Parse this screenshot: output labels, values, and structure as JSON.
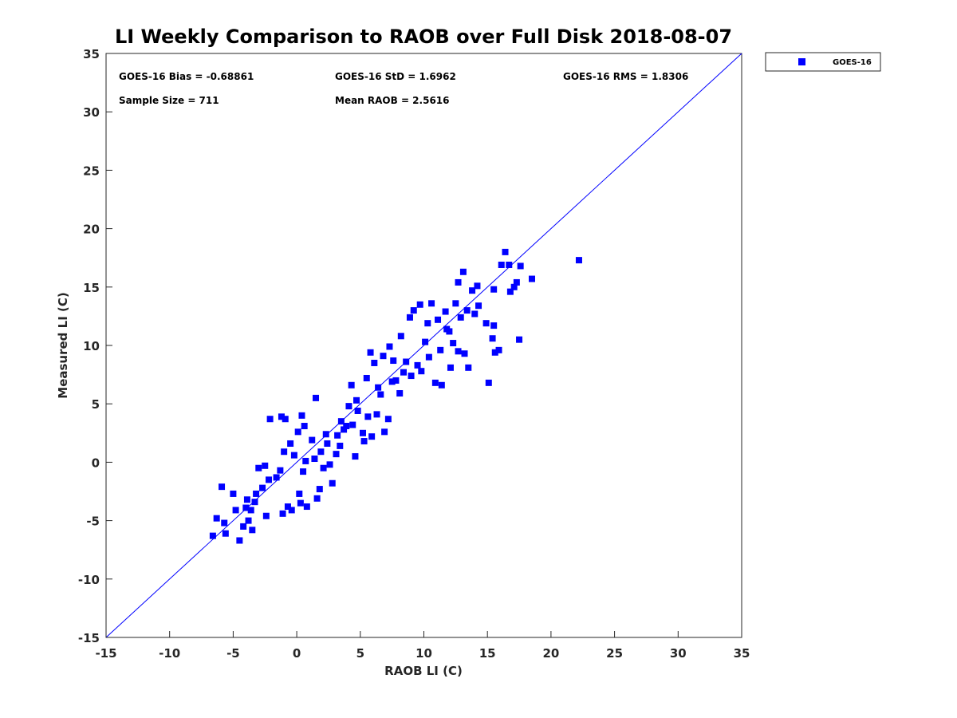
{
  "chart_data": {
    "type": "scatter",
    "title": "LI Weekly Comparison to RAOB over Full Disk 2018-08-07",
    "xlabel": "RAOB LI (C)",
    "ylabel": "Measured LI (C)",
    "xlim": [
      -15,
      35
    ],
    "ylim": [
      -15,
      35
    ],
    "xticks": [
      -15,
      -10,
      -5,
      0,
      5,
      10,
      15,
      20,
      25,
      30,
      35
    ],
    "yticks": [
      -15,
      -10,
      -5,
      0,
      5,
      10,
      15,
      20,
      25,
      30,
      35
    ],
    "grid": false,
    "legend_position": "outside-top-right",
    "marker_color": "#0000ff",
    "line_color": "#0000ff",
    "reference_line": {
      "name": "1:1 line",
      "from": [
        -15,
        -15
      ],
      "to": [
        35,
        35
      ]
    },
    "annotations": {
      "bias": "GOES-16 Bias = -0.68861",
      "std": "GOES-16 StD = 1.6962",
      "rms": "GOES-16 RMS = 1.8306",
      "sample_size": "Sample Size = 711",
      "mean_raob": "Mean RAOB = 2.5616"
    },
    "series": [
      {
        "name": "GOES-16",
        "points": [
          [
            -6.6,
            -6.3
          ],
          [
            -6.3,
            -4.8
          ],
          [
            -5.7,
            -5.2
          ],
          [
            -5.6,
            -6.1
          ],
          [
            -5.9,
            -2.1
          ],
          [
            -5.0,
            -2.7
          ],
          [
            -4.8,
            -4.1
          ],
          [
            -4.5,
            -6.7
          ],
          [
            -4.2,
            -5.5
          ],
          [
            -3.8,
            -5.0
          ],
          [
            -3.5,
            -5.8
          ],
          [
            -3.9,
            -3.2
          ],
          [
            -3.2,
            -2.7
          ],
          [
            -3.0,
            -0.5
          ],
          [
            -2.5,
            -0.3
          ],
          [
            -2.1,
            3.7
          ],
          [
            -1.2,
            3.9
          ],
          [
            -0.9,
            3.7
          ],
          [
            -1.0,
            0.9
          ],
          [
            -0.5,
            1.6
          ],
          [
            0.1,
            2.6
          ],
          [
            0.6,
            3.1
          ],
          [
            0.4,
            4.0
          ],
          [
            1.5,
            5.5
          ],
          [
            -1.6,
            -1.3
          ],
          [
            -1.1,
            -4.4
          ],
          [
            -0.7,
            -3.8
          ],
          [
            0.2,
            -2.7
          ],
          [
            0.8,
            -3.8
          ],
          [
            1.8,
            -2.3
          ],
          [
            2.6,
            -0.2
          ],
          [
            3.1,
            0.7
          ],
          [
            3.4,
            1.4
          ],
          [
            3.2,
            2.3
          ],
          [
            3.9,
            3.1
          ],
          [
            4.3,
            6.6
          ],
          [
            4.7,
            5.3
          ],
          [
            5.5,
            7.2
          ],
          [
            5.8,
            9.4
          ],
          [
            6.1,
            8.5
          ],
          [
            6.8,
            9.1
          ],
          [
            7.3,
            9.9
          ],
          [
            7.6,
            8.7
          ],
          [
            8.2,
            10.8
          ],
          [
            8.4,
            7.7
          ],
          [
            8.9,
            12.4
          ],
          [
            9.2,
            13.0
          ],
          [
            9.7,
            13.5
          ],
          [
            10.1,
            10.3
          ],
          [
            10.3,
            11.9
          ],
          [
            10.6,
            13.6
          ],
          [
            11.1,
            12.2
          ],
          [
            11.7,
            12.9
          ],
          [
            12.0,
            11.2
          ],
          [
            12.5,
            13.6
          ],
          [
            12.7,
            15.4
          ],
          [
            13.1,
            16.3
          ],
          [
            13.4,
            13.0
          ],
          [
            13.8,
            14.7
          ],
          [
            14.2,
            15.1
          ],
          [
            14.3,
            13.4
          ],
          [
            14.9,
            11.9
          ],
          [
            15.1,
            6.8
          ],
          [
            15.4,
            10.6
          ],
          [
            15.5,
            11.7
          ],
          [
            15.5,
            14.8
          ],
          [
            15.6,
            9.4
          ],
          [
            15.9,
            9.6
          ],
          [
            16.1,
            16.9
          ],
          [
            16.4,
            18.0
          ],
          [
            16.7,
            16.9
          ],
          [
            16.8,
            14.6
          ],
          [
            17.1,
            15.0
          ],
          [
            17.3,
            15.4
          ],
          [
            17.5,
            10.5
          ],
          [
            17.6,
            16.8
          ],
          [
            18.5,
            15.7
          ],
          [
            22.2,
            17.3
          ],
          [
            12.1,
            8.1
          ],
          [
            13.2,
            9.3
          ],
          [
            13.5,
            8.1
          ],
          [
            12.7,
            9.5
          ],
          [
            11.4,
            6.6
          ],
          [
            10.9,
            6.8
          ],
          [
            9.5,
            8.3
          ],
          [
            9.0,
            7.4
          ],
          [
            7.5,
            6.9
          ],
          [
            7.2,
            3.7
          ],
          [
            6.6,
            5.8
          ],
          [
            6.9,
            2.6
          ],
          [
            5.9,
            2.2
          ],
          [
            5.3,
            1.8
          ],
          [
            4.6,
            0.5
          ],
          [
            2.8,
            -1.8
          ],
          [
            1.6,
            -3.1
          ],
          [
            0.3,
            -3.5
          ],
          [
            -0.4,
            -4.1
          ],
          [
            -2.4,
            -4.6
          ],
          [
            -3.6,
            -4.1
          ],
          [
            -2.2,
            -1.5
          ],
          [
            0.7,
            0.1
          ],
          [
            1.9,
            0.9
          ],
          [
            2.3,
            2.4
          ],
          [
            3.5,
            3.5
          ],
          [
            4.8,
            4.4
          ],
          [
            5.2,
            2.5
          ],
          [
            6.3,
            4.1
          ],
          [
            8.1,
            5.9
          ],
          [
            9.8,
            7.8
          ],
          [
            11.3,
            9.6
          ],
          [
            12.3,
            10.2
          ],
          [
            14.0,
            12.7
          ],
          [
            4.1,
            4.8
          ],
          [
            2.4,
            1.6
          ],
          [
            1.2,
            1.9
          ],
          [
            -0.2,
            0.6
          ],
          [
            -1.3,
            -0.7
          ],
          [
            -2.7,
            -2.2
          ],
          [
            -3.3,
            -3.4
          ],
          [
            -4.0,
            -3.9
          ],
          [
            0.5,
            -0.8
          ],
          [
            1.4,
            0.3
          ],
          [
            2.1,
            -0.5
          ],
          [
            3.7,
            2.8
          ],
          [
            4.4,
            3.2
          ],
          [
            5.6,
            3.9
          ],
          [
            6.4,
            6.4
          ],
          [
            7.8,
            7.0
          ],
          [
            8.6,
            8.6
          ],
          [
            10.4,
            9.0
          ],
          [
            11.8,
            11.4
          ],
          [
            12.9,
            12.4
          ]
        ]
      }
    ]
  },
  "legend": {
    "entries": [
      {
        "label": "GOES-16",
        "color": "#0000ff"
      }
    ]
  }
}
